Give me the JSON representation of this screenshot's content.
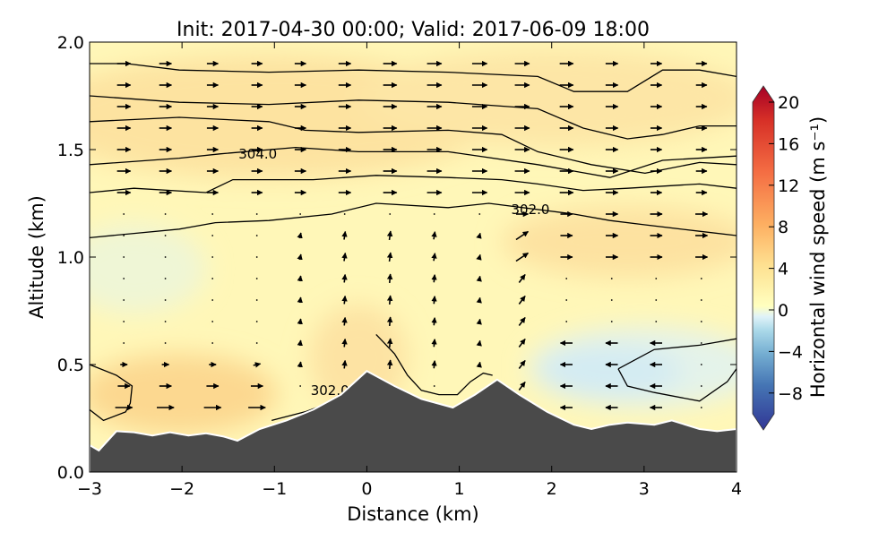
{
  "chart_data": {
    "type": "heatmap",
    "title": "Init: 2017-04-30 00:00; Valid: 2017-06-09 18:00",
    "xlabel": "Distance (km)",
    "ylabel": "Altitude (km)",
    "xlim": [
      -3,
      4
    ],
    "ylim": [
      0,
      2
    ],
    "xticks": [
      -3,
      -2,
      -1,
      0,
      1,
      2,
      3,
      4
    ],
    "xtick_labels": [
      "−3",
      "−2",
      "−1",
      "0",
      "1",
      "2",
      "3",
      "4"
    ],
    "yticks": [
      0,
      0.5,
      1,
      1.5,
      2
    ],
    "ytick_labels": [
      "0.0",
      "0.5",
      "1.0",
      "1.5",
      "2.0"
    ],
    "colorbar": {
      "label": "Horizontal wind speed (m s⁻¹)",
      "range": [
        -10,
        20
      ],
      "ticks": [
        20,
        16,
        12,
        8,
        4,
        0,
        -4,
        -8
      ],
      "tick_labels": [
        "20",
        "16",
        "12",
        "8",
        "4",
        "0",
        "−4",
        "−8"
      ],
      "extend": "both",
      "colormap": "RdYlBu_r"
    },
    "terrain": [
      [
        -3,
        0.125
      ],
      [
        -2.9,
        0.1
      ],
      [
        -2.71,
        0.19
      ],
      [
        -2.52,
        0.185
      ],
      [
        -2.32,
        0.17
      ],
      [
        -2.13,
        0.185
      ],
      [
        -1.93,
        0.17
      ],
      [
        -1.74,
        0.18
      ],
      [
        -1.55,
        0.165
      ],
      [
        -1.4,
        0.146
      ],
      [
        -1.16,
        0.2
      ],
      [
        -0.87,
        0.24
      ],
      [
        -0.58,
        0.29
      ],
      [
        -0.28,
        0.36
      ],
      [
        0.0,
        0.47
      ],
      [
        0.3,
        0.4
      ],
      [
        0.59,
        0.34
      ],
      [
        0.93,
        0.3
      ],
      [
        1.17,
        0.36
      ],
      [
        1.41,
        0.43
      ],
      [
        1.65,
        0.36
      ],
      [
        1.95,
        0.28
      ],
      [
        2.24,
        0.22
      ],
      [
        2.43,
        0.2
      ],
      [
        2.63,
        0.22
      ],
      [
        2.82,
        0.23
      ],
      [
        3.11,
        0.22
      ],
      [
        3.3,
        0.24
      ],
      [
        3.6,
        0.2
      ],
      [
        3.79,
        0.19
      ],
      [
        4.0,
        0.2
      ]
    ],
    "contours": [
      {
        "label": "",
        "points": [
          [
            -3,
            1.9
          ],
          [
            -2.6,
            1.9
          ],
          [
            -2.03,
            1.87
          ],
          [
            -1.06,
            1.86
          ],
          [
            -0.09,
            1.87
          ],
          [
            0.88,
            1.86
          ],
          [
            1.85,
            1.84
          ],
          [
            2.24,
            1.77
          ],
          [
            2.82,
            1.77
          ],
          [
            3.2,
            1.87
          ],
          [
            3.6,
            1.87
          ],
          [
            4,
            1.84
          ]
        ]
      },
      {
        "label": "",
        "points": [
          [
            -3,
            1.75
          ],
          [
            -2.03,
            1.72
          ],
          [
            -1.06,
            1.71
          ],
          [
            -0.09,
            1.73
          ],
          [
            0.88,
            1.72
          ],
          [
            1.85,
            1.69
          ],
          [
            2.34,
            1.6
          ],
          [
            2.82,
            1.55
          ],
          [
            3.2,
            1.57
          ],
          [
            3.6,
            1.61
          ],
          [
            4,
            1.61
          ]
        ]
      },
      {
        "label": "",
        "points": [
          [
            -3,
            1.63
          ],
          [
            -2.03,
            1.65
          ],
          [
            -1.06,
            1.63
          ],
          [
            -0.67,
            1.59
          ],
          [
            -0.09,
            1.58
          ],
          [
            0.88,
            1.59
          ],
          [
            1.46,
            1.57
          ],
          [
            1.85,
            1.49
          ],
          [
            2.43,
            1.43
          ],
          [
            3.01,
            1.39
          ],
          [
            3.6,
            1.44
          ],
          [
            4,
            1.43
          ]
        ]
      },
      {
        "label": "304.0",
        "label_at": [
          -1.18,
          1.48
        ],
        "points": [
          [
            -3,
            1.43
          ],
          [
            -2.03,
            1.46
          ],
          [
            -1.59,
            1.48
          ],
          [
            -0.77,
            1.51
          ],
          [
            -0.09,
            1.49
          ],
          [
            0.88,
            1.49
          ],
          [
            1.85,
            1.43
          ],
          [
            2.63,
            1.37
          ],
          [
            3.2,
            1.45
          ],
          [
            4,
            1.47
          ]
        ]
      },
      {
        "label": "",
        "points": [
          [
            -3,
            1.3
          ],
          [
            -2.52,
            1.32
          ],
          [
            -1.74,
            1.3
          ],
          [
            -1.45,
            1.36
          ],
          [
            -0.58,
            1.36
          ],
          [
            0.1,
            1.38
          ],
          [
            0.88,
            1.37
          ],
          [
            1.46,
            1.36
          ],
          [
            1.85,
            1.34
          ],
          [
            2.34,
            1.31
          ],
          [
            2.82,
            1.32
          ],
          [
            3.6,
            1.34
          ],
          [
            4,
            1.32
          ]
        ]
      },
      {
        "label": "302.0",
        "label_at": [
          1.77,
          1.22
        ],
        "points": [
          [
            -3,
            1.09
          ],
          [
            -2.52,
            1.11
          ],
          [
            -2.03,
            1.13
          ],
          [
            -1.64,
            1.16
          ],
          [
            -1.06,
            1.17
          ],
          [
            -0.38,
            1.2
          ],
          [
            0.1,
            1.25
          ],
          [
            0.88,
            1.23
          ],
          [
            1.32,
            1.25
          ],
          [
            2.24,
            1.2
          ],
          [
            2.63,
            1.17
          ],
          [
            3.01,
            1.15
          ],
          [
            3.6,
            1.12
          ],
          [
            4,
            1.1
          ]
        ]
      },
      {
        "label": "",
        "points": [
          [
            -3,
            0.5
          ],
          [
            -2.71,
            0.45
          ],
          [
            -2.54,
            0.4
          ],
          [
            -2.56,
            0.32
          ],
          [
            -2.61,
            0.28
          ],
          [
            -2.85,
            0.24
          ],
          [
            -3,
            0.29
          ]
        ]
      },
      {
        "label": "302.0",
        "label_at": [
          -0.4,
          0.38
        ],
        "points": [
          [
            -1.03,
            0.24
          ],
          [
            -0.67,
            0.28
          ],
          [
            -0.48,
            0.31
          ]
        ]
      },
      {
        "label": "",
        "points": [
          [
            0.1,
            0.64
          ],
          [
            0.3,
            0.55
          ],
          [
            0.44,
            0.45
          ],
          [
            0.59,
            0.38
          ],
          [
            0.78,
            0.36
          ],
          [
            0.98,
            0.36
          ],
          [
            1.12,
            0.42
          ],
          [
            1.26,
            0.46
          ],
          [
            1.36,
            0.45
          ]
        ]
      },
      {
        "label": "",
        "points": [
          [
            2.72,
            0.48
          ],
          [
            3.11,
            0.57
          ],
          [
            3.6,
            0.59
          ],
          [
            4,
            0.62
          ]
        ]
      },
      {
        "label": "",
        "points": [
          [
            2.72,
            0.48
          ],
          [
            2.82,
            0.4
          ],
          [
            3.11,
            0.37
          ],
          [
            3.6,
            0.33
          ],
          [
            3.9,
            0.42
          ],
          [
            4,
            0.48
          ]
        ]
      }
    ],
    "wind_vectors": {
      "columns_km": [
        -2.63,
        -2.18,
        -1.67,
        -1.19,
        -0.72,
        -0.24,
        0.25,
        0.73,
        1.22,
        1.68,
        2.16,
        2.65,
        3.13,
        3.62
      ],
      "levels_km": [
        0.2,
        0.3,
        0.4,
        0.5,
        0.6,
        0.7,
        0.8,
        0.9,
        1.0,
        1.1,
        1.2,
        1.3,
        1.4,
        1.5,
        1.6,
        1.7,
        1.8,
        1.9
      ]
    }
  }
}
